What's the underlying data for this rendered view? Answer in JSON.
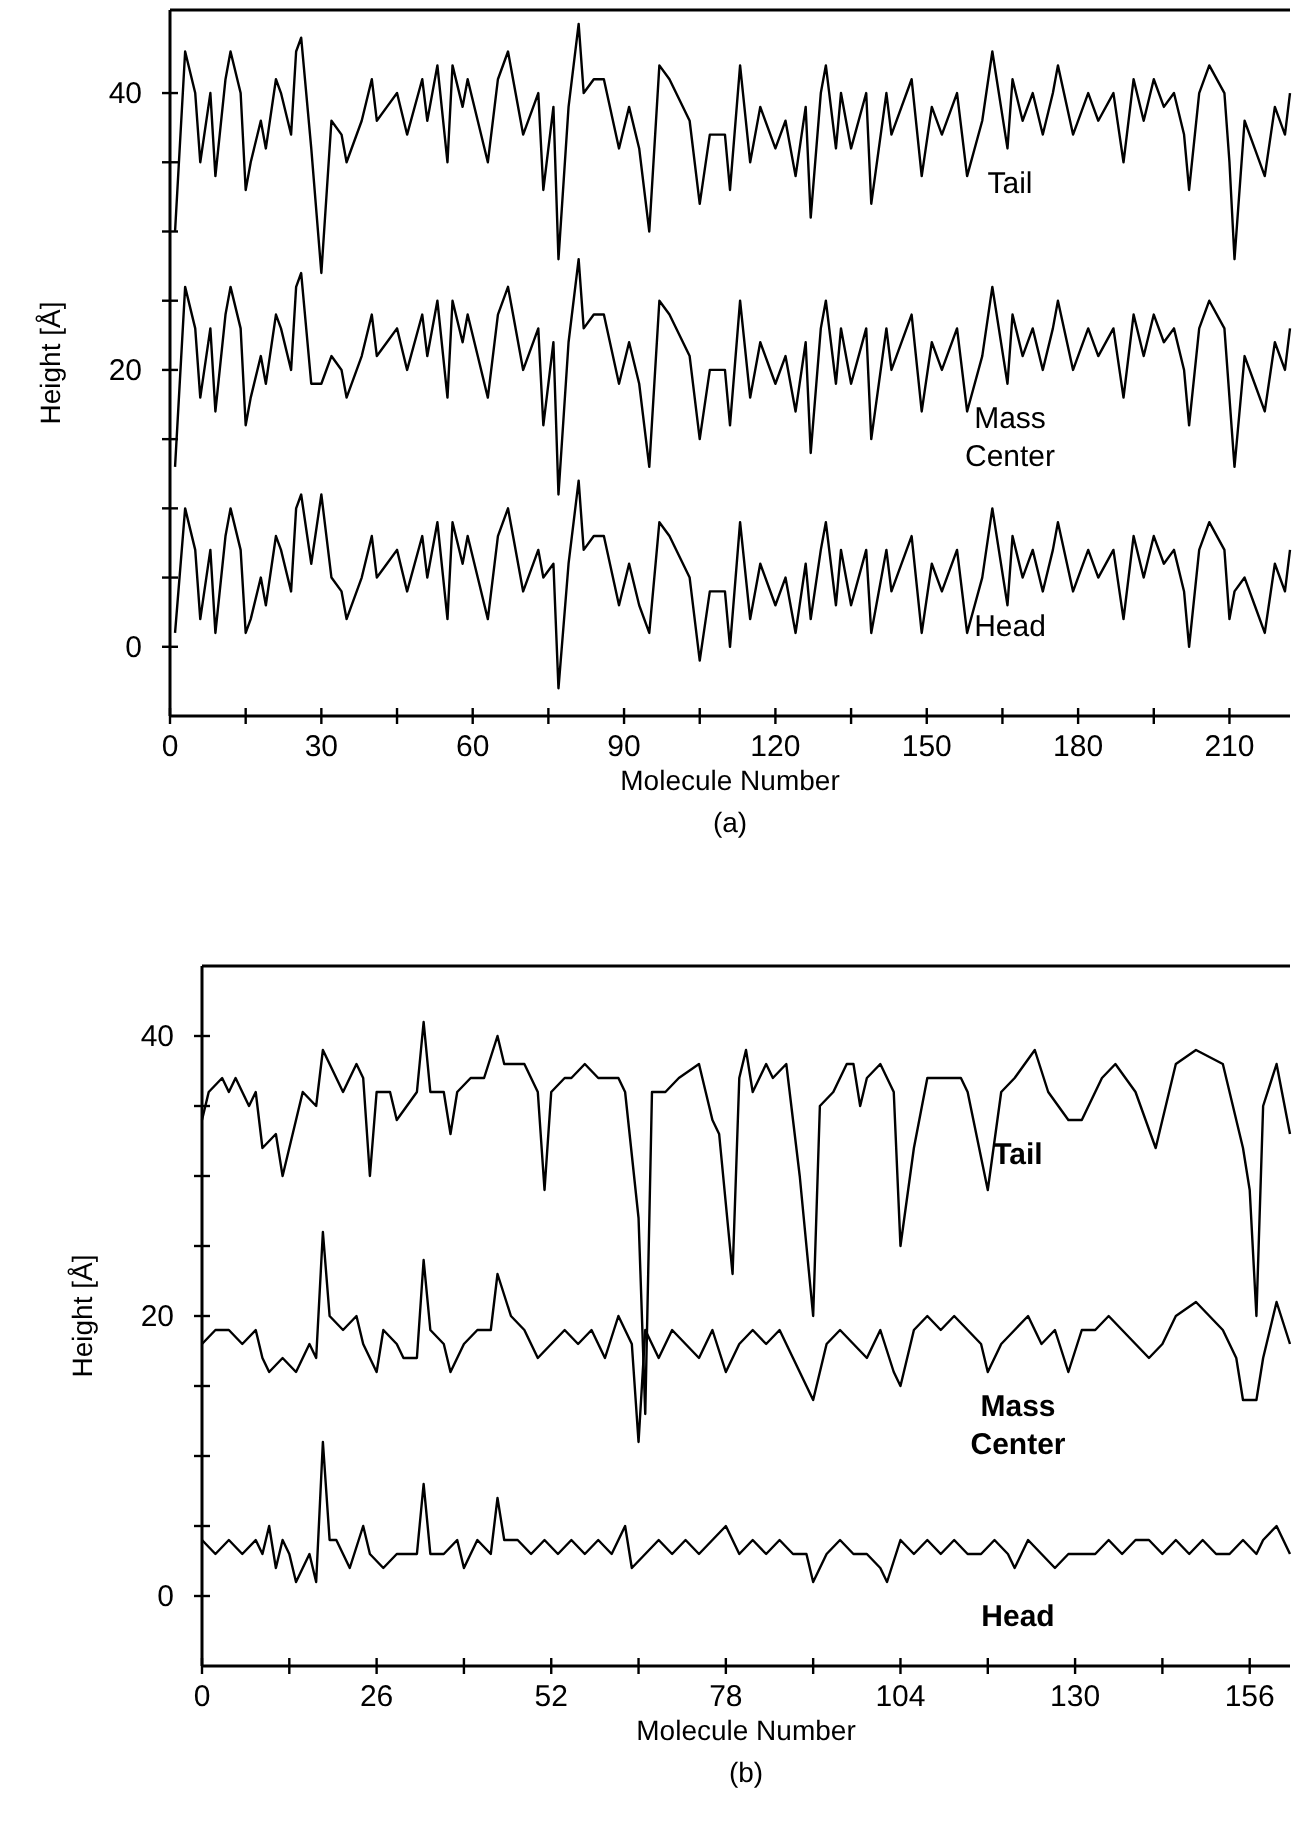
{
  "chart_data": [
    {
      "type": "line",
      "xlabel": "Molecule Number",
      "ylabel": "Height [Å]",
      "annotations": [
        "(a)"
      ],
      "xlim": [
        0,
        222
      ],
      "ylim": [
        -5,
        46
      ],
      "xticks": [
        0,
        {
          "value": 15,
          "label": null
        },
        30,
        {
          "value": 45,
          "label": null
        },
        60,
        {
          "value": 75,
          "label": null
        },
        90,
        {
          "value": 105,
          "label": null
        },
        120,
        {
          "value": 135,
          "label": null
        },
        150,
        {
          "value": 165,
          "label": null
        },
        180,
        {
          "value": 195,
          "label": null
        },
        210
      ],
      "yticks": [
        0,
        {
          "value": 5,
          "label": null
        },
        {
          "value": 10,
          "label": null
        },
        {
          "value": 15,
          "label": null
        },
        20,
        {
          "value": 25,
          "label": null
        },
        {
          "value": 30,
          "label": null
        },
        {
          "value": 35,
          "label": null
        },
        40
      ],
      "x": [
        1,
        3,
        5,
        6,
        8,
        9,
        11,
        12,
        14,
        15,
        16,
        18,
        19,
        21,
        22,
        24,
        25,
        26,
        28,
        30,
        32,
        34,
        35,
        38,
        40,
        41,
        43,
        45,
        47,
        50,
        51,
        53,
        55,
        56,
        58,
        59,
        61,
        63,
        65,
        67,
        68,
        70,
        73,
        74,
        76,
        77,
        79,
        81,
        82,
        84,
        86,
        89,
        91,
        93,
        95,
        97,
        99,
        103,
        105,
        107,
        110,
        111,
        113,
        115,
        117,
        120,
        122,
        124,
        126,
        127,
        129,
        130,
        132,
        133,
        135,
        138,
        139,
        142,
        143,
        147,
        149,
        151,
        153,
        156,
        158,
        161,
        163,
        166,
        167,
        169,
        171,
        173,
        175,
        176,
        179,
        182,
        184,
        187,
        189,
        191,
        193,
        195,
        197,
        199,
        201,
        202,
        204,
        206,
        209,
        210,
        211,
        213,
        215,
        217,
        219,
        221,
        222
      ],
      "series": [
        {
          "name": "Tail",
          "color": "#000000",
          "values": [
            30,
            43,
            40,
            35,
            40,
            34,
            41,
            43,
            40,
            33,
            35,
            38,
            36,
            41,
            40,
            37,
            43,
            44,
            36,
            27,
            38,
            37,
            35,
            38,
            41,
            38,
            39,
            40,
            37,
            41,
            38,
            42,
            35,
            42,
            39,
            41,
            38,
            35,
            41,
            43,
            41,
            37,
            40,
            33,
            39,
            28,
            39,
            45,
            40,
            41,
            41,
            36,
            39,
            36,
            30,
            42,
            41,
            38,
            32,
            37,
            37,
            33,
            42,
            35,
            39,
            36,
            38,
            34,
            39,
            31,
            40,
            42,
            36,
            40,
            36,
            40,
            32,
            40,
            37,
            41,
            34,
            39,
            37,
            40,
            34,
            38,
            43,
            36,
            41,
            38,
            40,
            37,
            40,
            42,
            37,
            40,
            38,
            40,
            35,
            41,
            38,
            41,
            39,
            40,
            37,
            33,
            40,
            42,
            40,
            35,
            28,
            38,
            36,
            34,
            39,
            37,
            40
          ]
        },
        {
          "name": "Mass Center",
          "color": "#000000",
          "values": [
            13,
            26,
            23,
            18,
            23,
            17,
            24,
            26,
            23,
            16,
            18,
            21,
            19,
            24,
            23,
            20,
            26,
            27,
            19,
            19,
            21,
            20,
            18,
            21,
            24,
            21,
            22,
            23,
            20,
            24,
            21,
            25,
            18,
            25,
            22,
            24,
            21,
            18,
            24,
            26,
            24,
            20,
            23,
            16,
            22,
            11,
            22,
            28,
            23,
            24,
            24,
            19,
            22,
            19,
            13,
            25,
            24,
            21,
            15,
            20,
            20,
            16,
            25,
            18,
            22,
            19,
            21,
            17,
            22,
            14,
            23,
            25,
            19,
            23,
            19,
            23,
            15,
            23,
            20,
            24,
            17,
            22,
            20,
            23,
            17,
            21,
            26,
            19,
            24,
            21,
            23,
            20,
            23,
            25,
            20,
            23,
            21,
            23,
            18,
            24,
            21,
            24,
            22,
            23,
            20,
            16,
            23,
            25,
            23,
            18,
            13,
            21,
            19,
            17,
            22,
            20,
            23
          ]
        },
        {
          "name": "Head",
          "color": "#000000",
          "values": [
            1,
            10,
            7,
            2,
            7,
            1,
            8,
            10,
            7,
            1,
            2,
            5,
            3,
            8,
            7,
            4,
            10,
            11,
            6,
            11,
            5,
            4,
            2,
            5,
            8,
            5,
            6,
            7,
            4,
            8,
            5,
            9,
            2,
            9,
            6,
            8,
            5,
            2,
            8,
            10,
            8,
            4,
            7,
            5,
            6,
            -3,
            6,
            12,
            7,
            8,
            8,
            3,
            6,
            3,
            1,
            9,
            8,
            5,
            -1,
            4,
            4,
            0,
            9,
            2,
            6,
            3,
            5,
            1,
            6,
            2,
            7,
            9,
            3,
            7,
            3,
            7,
            1,
            7,
            4,
            8,
            1,
            6,
            4,
            7,
            1,
            5,
            10,
            3,
            8,
            5,
            7,
            4,
            7,
            9,
            4,
            7,
            5,
            7,
            2,
            8,
            5,
            8,
            6,
            7,
            4,
            0,
            7,
            9,
            7,
            2,
            4,
            5,
            3,
            1,
            6,
            4,
            7
          ]
        }
      ]
    },
    {
      "type": "line",
      "xlabel": "Molecule Number",
      "ylabel": "Height [Å]",
      "annotations": [
        "(b)"
      ],
      "xlim": [
        0,
        162
      ],
      "ylim": [
        -5,
        45
      ],
      "xticks": [
        0,
        {
          "value": 13,
          "label": null
        },
        26,
        {
          "value": 39,
          "label": null
        },
        52,
        {
          "value": 65,
          "label": null
        },
        78,
        {
          "value": 91,
          "label": null
        },
        104,
        {
          "value": 117,
          "label": null
        },
        130,
        {
          "value": 143,
          "label": null
        },
        156
      ],
      "yticks": [
        0,
        {
          "value": 5,
          "label": null
        },
        {
          "value": 10,
          "label": null
        },
        {
          "value": 15,
          "label": null
        },
        20,
        {
          "value": 25,
          "label": null
        },
        {
          "value": 30,
          "label": null
        },
        {
          "value": 35,
          "label": null
        },
        40
      ],
      "series": [
        {
          "name": "Tail",
          "color": "#000000",
          "x": [
            0,
            1,
            3,
            4,
            5,
            6,
            7,
            8,
            9,
            11,
            12,
            14,
            15,
            17,
            18,
            19,
            21,
            23,
            24,
            25,
            26,
            28,
            29,
            32,
            33,
            34,
            36,
            37,
            38,
            40,
            42,
            44,
            45,
            48,
            50,
            51,
            52,
            54,
            55,
            57,
            59,
            62,
            63,
            65,
            66,
            67,
            69,
            71,
            74,
            75,
            76,
            77,
            79,
            80,
            81,
            82,
            84,
            85,
            87,
            89,
            91,
            92,
            94,
            96,
            97,
            98,
            99,
            101,
            103,
            104,
            106,
            108,
            110,
            113,
            114,
            117,
            119,
            121,
            124,
            126,
            129,
            131,
            134,
            136,
            139,
            142,
            145,
            148,
            152,
            155,
            156,
            157,
            158,
            160,
            162
          ],
          "values": [
            34,
            36,
            37,
            36,
            37,
            36,
            35,
            36,
            32,
            33,
            30,
            34,
            36,
            35,
            39,
            38,
            36,
            38,
            37,
            30,
            36,
            36,
            34,
            36,
            41,
            36,
            36,
            33,
            36,
            37,
            37,
            40,
            38,
            38,
            36,
            29,
            36,
            37,
            37,
            38,
            37,
            37,
            36,
            27,
            13,
            36,
            36,
            37,
            38,
            36,
            34,
            33,
            23,
            37,
            39,
            36,
            38,
            37,
            38,
            30,
            20,
            35,
            36,
            38,
            38,
            35,
            37,
            38,
            36,
            25,
            32,
            37,
            37,
            37,
            36,
            29,
            36,
            37,
            39,
            36,
            34,
            34,
            37,
            38,
            36,
            32,
            38,
            39,
            38,
            32,
            29,
            20,
            35,
            38,
            33
          ]
        },
        {
          "name": "Mass Center",
          "color": "#000000",
          "x": [
            0,
            2,
            4,
            6,
            8,
            9,
            10,
            12,
            14,
            16,
            17,
            18,
            19,
            21,
            23,
            24,
            26,
            27,
            29,
            30,
            32,
            33,
            34,
            36,
            37,
            39,
            41,
            43,
            44,
            46,
            48,
            50,
            52,
            54,
            56,
            58,
            60,
            62,
            64,
            65,
            66,
            68,
            70,
            72,
            74,
            76,
            78,
            80,
            82,
            84,
            86,
            88,
            90,
            91,
            93,
            95,
            97,
            99,
            101,
            103,
            104,
            106,
            108,
            110,
            112,
            114,
            116,
            117,
            119,
            121,
            123,
            125,
            127,
            129,
            131,
            133,
            135,
            137,
            139,
            141,
            143,
            145,
            148,
            150,
            152,
            154,
            155,
            157,
            158,
            160,
            162
          ],
          "values": [
            18,
            19,
            19,
            18,
            19,
            17,
            16,
            17,
            16,
            18,
            17,
            26,
            20,
            19,
            20,
            18,
            16,
            19,
            18,
            17,
            17,
            24,
            19,
            18,
            16,
            18,
            19,
            19,
            23,
            20,
            19,
            17,
            18,
            19,
            18,
            19,
            17,
            20,
            18,
            11,
            19,
            17,
            19,
            18,
            17,
            19,
            16,
            18,
            19,
            18,
            19,
            17,
            15,
            14,
            18,
            19,
            18,
            17,
            19,
            16,
            15,
            19,
            20,
            19,
            20,
            19,
            18,
            16,
            18,
            19,
            20,
            18,
            19,
            16,
            19,
            19,
            20,
            19,
            18,
            17,
            18,
            20,
            21,
            20,
            19,
            17,
            14,
            14,
            17,
            21,
            18
          ]
        },
        {
          "name": "Head",
          "color": "#000000",
          "x": [
            0,
            2,
            4,
            6,
            8,
            9,
            10,
            11,
            12,
            13,
            14,
            15,
            16,
            17,
            18,
            19,
            20,
            22,
            24,
            25,
            27,
            29,
            31,
            32,
            33,
            34,
            36,
            38,
            39,
            41,
            43,
            44,
            45,
            47,
            49,
            51,
            53,
            55,
            57,
            59,
            61,
            63,
            64,
            66,
            68,
            70,
            72,
            74,
            76,
            78,
            80,
            82,
            84,
            86,
            88,
            90,
            91,
            93,
            95,
            97,
            99,
            101,
            102,
            104,
            106,
            108,
            110,
            112,
            114,
            116,
            118,
            120,
            121,
            123,
            125,
            127,
            129,
            131,
            133,
            135,
            137,
            139,
            141,
            143,
            145,
            147,
            149,
            151,
            153,
            155,
            157,
            158,
            160,
            162
          ],
          "values": [
            4,
            3,
            4,
            3,
            4,
            3,
            5,
            2,
            4,
            3,
            1,
            2,
            3,
            1,
            11,
            4,
            4,
            2,
            5,
            3,
            2,
            3,
            3,
            3,
            8,
            3,
            3,
            4,
            2,
            4,
            3,
            7,
            4,
            4,
            3,
            4,
            3,
            4,
            3,
            4,
            3,
            5,
            2,
            3,
            4,
            3,
            4,
            3,
            4,
            5,
            3,
            4,
            3,
            4,
            3,
            3,
            1,
            3,
            4,
            3,
            3,
            2,
            1,
            4,
            3,
            4,
            3,
            4,
            3,
            3,
            4,
            3,
            2,
            4,
            3,
            2,
            3,
            3,
            3,
            4,
            3,
            4,
            4,
            3,
            4,
            3,
            4,
            3,
            3,
            4,
            3,
            4,
            5,
            3
          ]
        }
      ]
    }
  ]
}
